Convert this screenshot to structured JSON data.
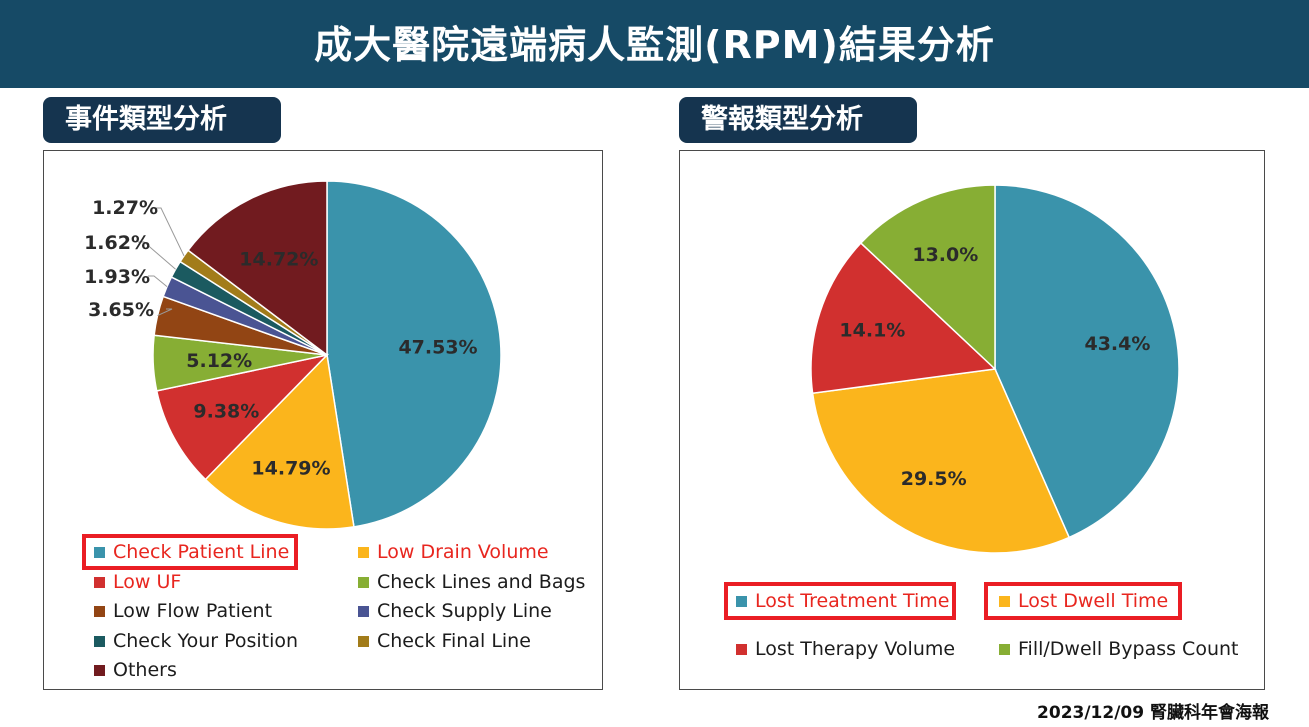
{
  "header": {
    "title": "成大醫院遠端病人監測(RPM)結果分析"
  },
  "footer": {
    "text": "2023/12/09 腎臟科年會海報"
  },
  "chart_data": [
    {
      "type": "pie",
      "panel_title": "事件類型分析",
      "title": "",
      "slices": [
        {
          "label": "Check Patient Line",
          "value": 47.53,
          "display": "47.53%",
          "color": "#3a93ab",
          "highlighted": true
        },
        {
          "label": "Low Drain Volume",
          "value": 14.79,
          "display": "14.79%",
          "color": "#fbb51c",
          "highlighted": true
        },
        {
          "label": "Low UF",
          "value": 9.38,
          "display": "9.38%",
          "color": "#d1302f",
          "highlighted": true
        },
        {
          "label": "Check Lines and Bags",
          "value": 5.12,
          "display": "5.12%",
          "color": "#87ae34",
          "highlighted": false
        },
        {
          "label": "Low Flow Patient",
          "value": 3.65,
          "display": "3.65%",
          "color": "#924514",
          "highlighted": false
        },
        {
          "label": "Check Supply Line",
          "value": 1.93,
          "display": "1.93%",
          "color": "#4a5493",
          "highlighted": false
        },
        {
          "label": "Check Your Position",
          "value": 1.62,
          "display": "1.62%",
          "color": "#1b5a60",
          "highlighted": false
        },
        {
          "label": "Check Final Line",
          "value": 1.27,
          "display": "1.27%",
          "color": "#a27c1a",
          "highlighted": false
        },
        {
          "label": "Others",
          "value": 14.72,
          "display": "14.72%",
          "color": "#711b1f",
          "highlighted": false
        }
      ],
      "legend_position": "bottom"
    },
    {
      "type": "pie",
      "panel_title": "警報類型分析",
      "title": "",
      "slices": [
        {
          "label": "Lost Treatment Time",
          "value": 43.4,
          "display": "43.4%",
          "color": "#3a93ab",
          "highlighted": true
        },
        {
          "label": "Lost Dwell Time",
          "value": 29.5,
          "display": "29.5%",
          "color": "#fbb51c",
          "highlighted": true
        },
        {
          "label": "Lost Therapy Volume",
          "value": 14.1,
          "display": "14.1%",
          "color": "#d1302f",
          "highlighted": false
        },
        {
          "label": "Fill/Dwell Bypass Count",
          "value": 13.0,
          "display": "13.0%",
          "color": "#87ae34",
          "highlighted": false
        }
      ],
      "legend_position": "bottom"
    }
  ]
}
